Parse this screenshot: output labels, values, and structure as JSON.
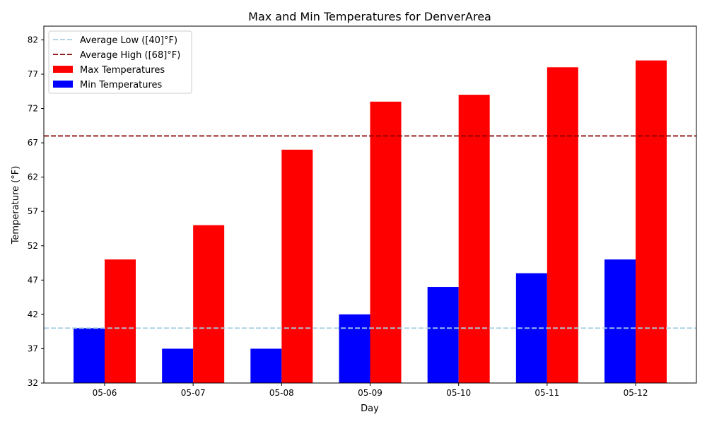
{
  "chart_data": {
    "type": "bar",
    "title": "Max and Min Temperatures for DenverArea",
    "xlabel": "Day",
    "ylabel": "Temperature (°F)",
    "ylim": [
      32,
      84
    ],
    "yticks": [
      32,
      37,
      42,
      47,
      52,
      57,
      62,
      67,
      72,
      77,
      82
    ],
    "categories": [
      "05-06",
      "05-07",
      "05-08",
      "05-09",
      "05-10",
      "05-11",
      "05-12"
    ],
    "series": [
      {
        "name": "Min Temperatures",
        "color": "#0000ff",
        "values": [
          40,
          37,
          37,
          42,
          46,
          48,
          50
        ]
      },
      {
        "name": "Max Temperatures",
        "color": "#ff0000",
        "values": [
          50,
          55,
          66,
          73,
          74,
          78,
          79
        ]
      }
    ],
    "reference_lines": [
      {
        "name": "Average Low ([40]°F)",
        "value": 40,
        "color": "#a6cee3",
        "style": "dashed"
      },
      {
        "name": "Average High ([68]°F)",
        "value": 68,
        "color": "#8b0000",
        "style": "dashed"
      }
    ],
    "legend": {
      "position": "top-left",
      "entries": [
        {
          "label": "Average Low ([40]°F)",
          "kind": "line",
          "color": "#a6cee3"
        },
        {
          "label": "Average High ([68]°F)",
          "kind": "line",
          "color": "#8b0000"
        },
        {
          "label": "Max Temperatures",
          "kind": "patch",
          "color": "#ff0000"
        },
        {
          "label": "Min Temperatures",
          "kind": "patch",
          "color": "#0000ff"
        }
      ]
    },
    "grid": false
  }
}
